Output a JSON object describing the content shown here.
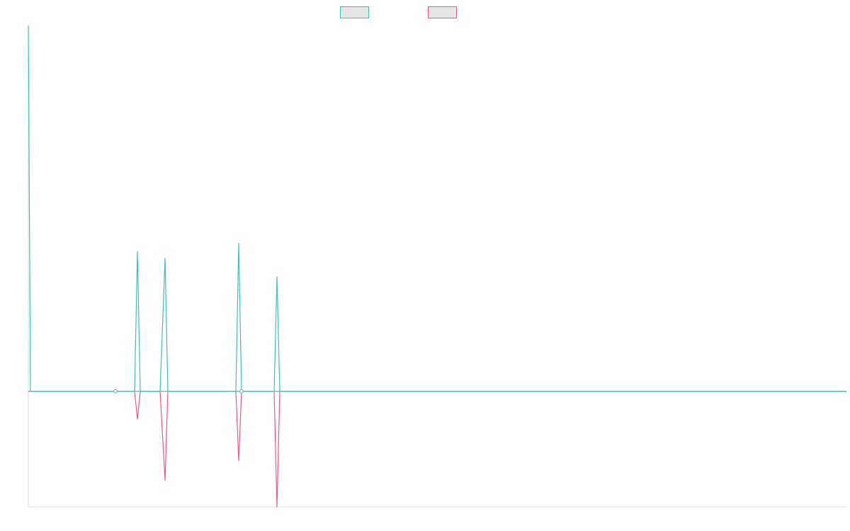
{
  "colors": {
    "series_a": "#3fbfb6",
    "series_b": "#f0587f",
    "legend_fill": "#e6e6e6",
    "axis": "#dddddd",
    "zero_line": "#7a9bb0",
    "background": "#ffffff"
  },
  "chart_data": {
    "type": "line",
    "title": "",
    "xlabel": "",
    "ylabel": "",
    "grid": false,
    "legend_placement": "top-center",
    "xlim": [
      0,
      1155
    ],
    "ylim": [
      -1,
      3.17
    ],
    "x": [
      0,
      3,
      123,
      150,
      154,
      158,
      186,
      193,
      197,
      293,
      297,
      301,
      347,
      351,
      355,
      1155
    ],
    "series": [
      {
        "values": [
          3.16,
          0,
          0,
          0,
          1.21,
          0,
          0,
          1.15,
          0,
          0,
          1.28,
          0,
          0,
          0.99,
          0,
          0
        ],
        "marker_x": [
          123,
          301
        ]
      },
      {
        "values": [
          0,
          0,
          0,
          0,
          -0.24,
          0,
          0,
          -0.77,
          0,
          0,
          -0.6,
          0,
          0,
          -1,
          0,
          0
        ]
      }
    ]
  }
}
